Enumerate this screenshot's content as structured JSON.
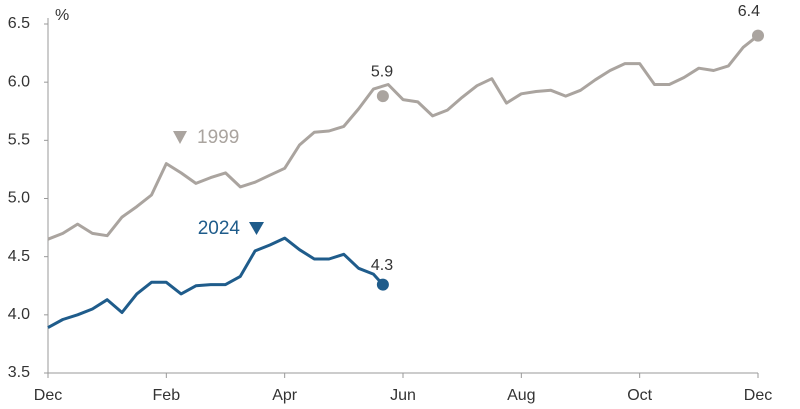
{
  "chart_data": {
    "type": "line",
    "y_label": "%",
    "xlim": [
      0,
      12
    ],
    "xticks": [
      {
        "value": 0,
        "label": "Dec"
      },
      {
        "value": 2,
        "label": "Feb"
      },
      {
        "value": 4,
        "label": "Apr"
      },
      {
        "value": 6,
        "label": "Jun"
      },
      {
        "value": 8,
        "label": "Aug"
      },
      {
        "value": 10,
        "label": "Oct"
      },
      {
        "value": 12,
        "label": "Dec"
      }
    ],
    "ylim": [
      3.5,
      6.5
    ],
    "yticks": [
      3.5,
      {
        "value": 4,
        "label": "4.0"
      },
      4.5,
      {
        "value": 5,
        "label": "5.0"
      },
      5.5,
      {
        "value": 6,
        "label": "6.0"
      },
      6.5
    ],
    "grid": false,
    "series": [
      {
        "name": "1999",
        "color": "#aaa49f",
        "x": [
          0,
          0.25,
          0.5,
          0.75,
          1,
          1.25,
          1.5,
          1.75,
          2,
          2.25,
          2.5,
          2.75,
          3,
          3.25,
          3.5,
          3.75,
          4,
          4.25,
          4.5,
          4.75,
          5,
          5.25,
          5.5,
          5.75,
          6,
          6.25,
          6.5,
          6.75,
          7,
          7.25,
          7.5,
          7.75,
          8,
          8.25,
          8.5,
          8.75,
          9,
          9.25,
          9.5,
          9.75,
          10,
          10.25,
          10.5,
          10.75,
          11,
          11.25,
          11.5,
          11.75,
          12
        ],
        "values": [
          4.65,
          4.7,
          4.78,
          4.7,
          4.68,
          4.84,
          4.93,
          5.03,
          5.3,
          5.22,
          5.13,
          5.18,
          5.22,
          5.1,
          5.14,
          5.2,
          5.26,
          5.46,
          5.57,
          5.58,
          5.62,
          5.77,
          5.94,
          5.98,
          5.85,
          5.83,
          5.71,
          5.76,
          5.87,
          5.97,
          6.03,
          5.82,
          5.9,
          5.92,
          5.93,
          5.88,
          5.93,
          6.02,
          6.1,
          6.16,
          6.16,
          5.98,
          5.98,
          6.04,
          6.12,
          6.1,
          6.14,
          6.3,
          6.4
        ]
      },
      {
        "name": "2024",
        "color": "#1f5c8b",
        "x": [
          0,
          0.25,
          0.5,
          0.75,
          1,
          1.25,
          1.5,
          1.75,
          2,
          2.25,
          2.5,
          2.75,
          3,
          3.25,
          3.5,
          3.75,
          4,
          4.25,
          4.5,
          4.75,
          5,
          5.25,
          5.5,
          5.66
        ],
        "values": [
          3.89,
          3.96,
          4.0,
          4.05,
          4.13,
          4.02,
          4.18,
          4.28,
          4.28,
          4.18,
          4.25,
          4.26,
          4.26,
          4.33,
          4.55,
          4.6,
          4.66,
          4.56,
          4.48,
          4.48,
          4.52,
          4.4,
          4.35,
          4.26
        ]
      }
    ],
    "point_labels": [
      {
        "series": 0,
        "x": 5.66,
        "value": 5.88,
        "label": "5.9"
      },
      {
        "series": 0,
        "x": 12,
        "value": 6.4,
        "label": "6.4"
      },
      {
        "series": 1,
        "x": 5.66,
        "value": 4.26,
        "label": "4.3"
      }
    ]
  }
}
